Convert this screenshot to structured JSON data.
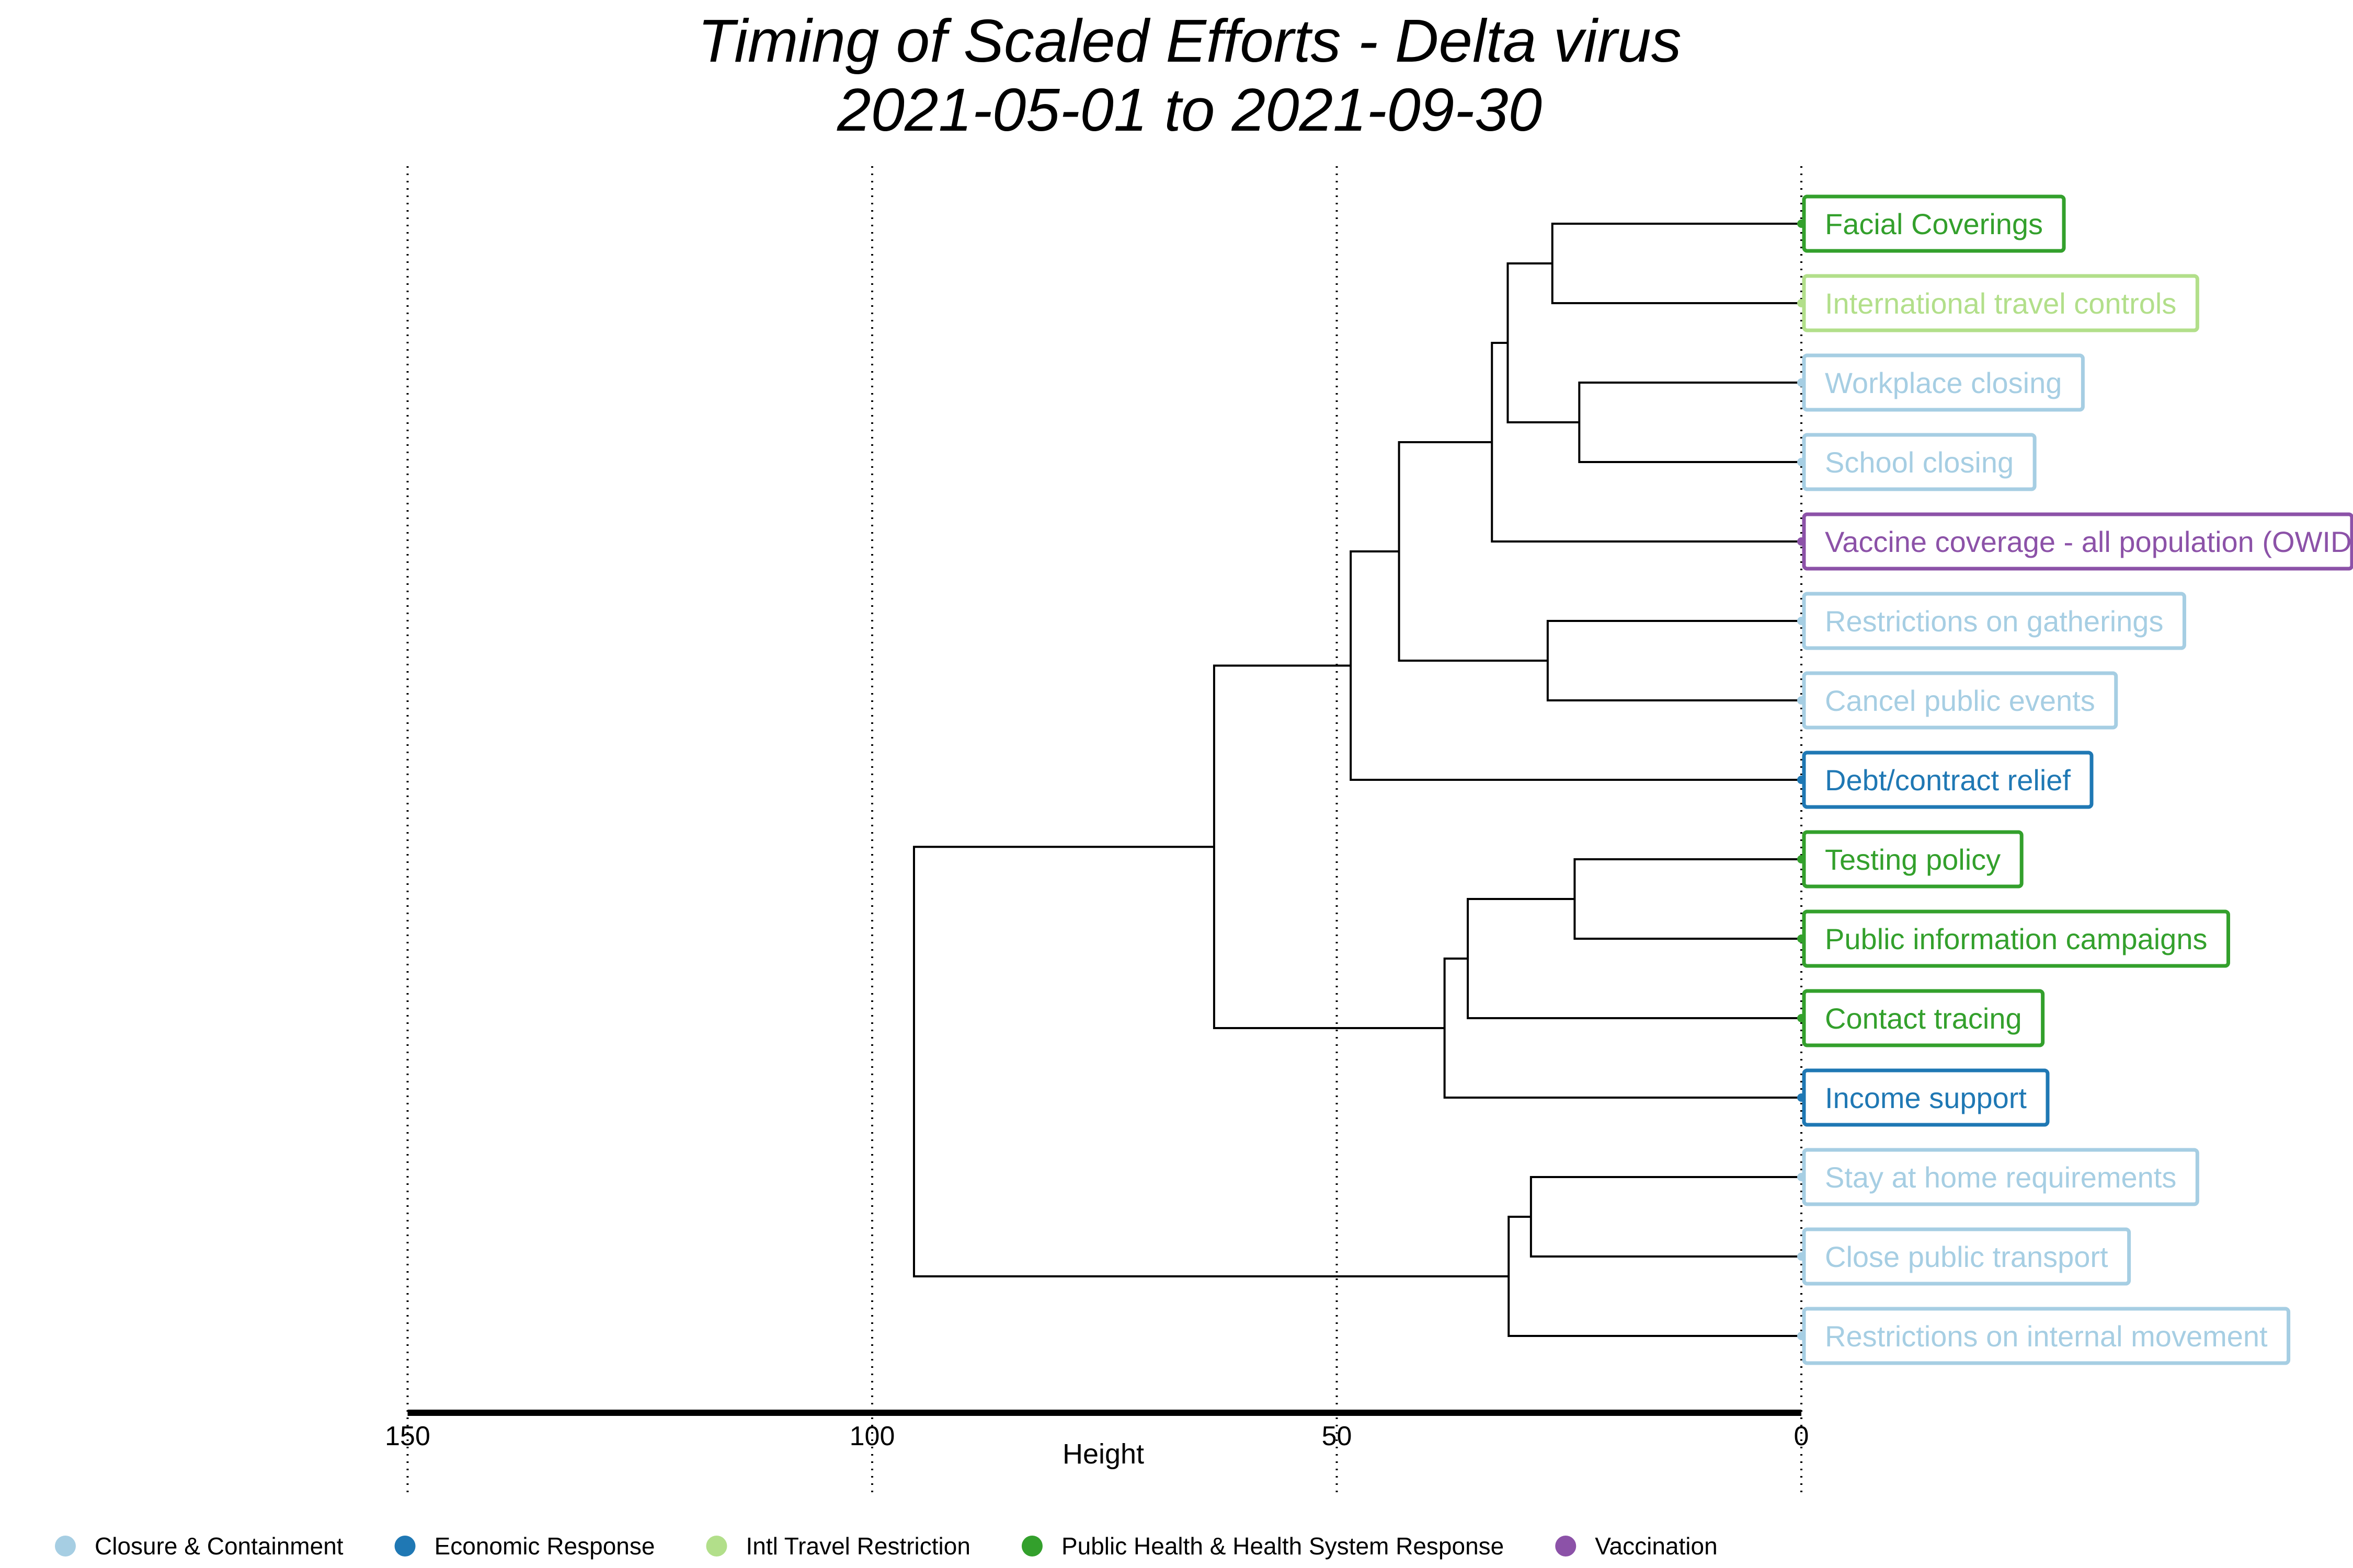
{
  "title": {
    "line1": "Timing of Scaled Efforts - Delta virus",
    "line2": "2021-05-01 to 2021-09-30"
  },
  "axis": {
    "label": "Height",
    "ticks": [
      "150",
      "100",
      "50",
      "0"
    ],
    "range": [
      150,
      0
    ],
    "gridlines": true
  },
  "colors": {
    "Closure & Containment": "#a6cee3",
    "Economic Response": "#1f78b4",
    "Intl Travel Restriction": "#b2df8a",
    "Public Health & Health System Response": "#33a02c",
    "Vaccination": "#8c52a8"
  },
  "legend": {
    "position": "bottom",
    "items": [
      {
        "label": "Closure & Containment",
        "color": "#a6cee3"
      },
      {
        "label": "Economic Response",
        "color": "#1f78b4"
      },
      {
        "label": "Intl Travel Restriction",
        "color": "#b2df8a"
      },
      {
        "label": "Public Health & Health System Response",
        "color": "#33a02c"
      },
      {
        "label": "Vaccination",
        "color": "#8c52a8"
      }
    ]
  },
  "chart_data": {
    "type": "dendrogram",
    "orientation": "horizontal",
    "leaves": [
      {
        "label": "Facial Coverings",
        "category": "Public Health & Health System Response"
      },
      {
        "label": "International travel controls",
        "category": "Intl Travel Restriction"
      },
      {
        "label": "Workplace closing",
        "category": "Closure & Containment"
      },
      {
        "label": "School closing",
        "category": "Closure & Containment"
      },
      {
        "label": "Vaccine coverage - all population (OWID)",
        "category": "Vaccination"
      },
      {
        "label": "Restrictions on gatherings",
        "category": "Closure & Containment"
      },
      {
        "label": "Cancel public events",
        "category": "Closure & Containment"
      },
      {
        "label": "Debt/contract relief",
        "category": "Economic Response"
      },
      {
        "label": "Testing policy",
        "category": "Public Health & Health System Response"
      },
      {
        "label": "Public information campaigns",
        "category": "Public Health & Health System Response"
      },
      {
        "label": "Contact tracing",
        "category": "Public Health & Health System Response"
      },
      {
        "label": "Income support",
        "category": "Economic Response"
      },
      {
        "label": "Stay at home requirements",
        "category": "Closure & Containment"
      },
      {
        "label": "Close public transport",
        "category": "Closure & Containment"
      },
      {
        "label": "Restrictions on internal movement",
        "category": "Closure & Containment"
      }
    ],
    "merges": [
      {
        "id": "m1",
        "children": [
          0,
          1
        ],
        "height": 26.8
      },
      {
        "id": "m2",
        "children": [
          2,
          3
        ],
        "height": 23.9
      },
      {
        "id": "m3",
        "children": [
          "m1",
          "m2"
        ],
        "height": 31.6
      },
      {
        "id": "m4",
        "children": [
          "m3",
          4
        ],
        "height": 33.3
      },
      {
        "id": "m5",
        "children": [
          5,
          6
        ],
        "height": 27.3
      },
      {
        "id": "m6",
        "children": [
          "m4",
          "m5"
        ],
        "height": 43.3
      },
      {
        "id": "m7",
        "children": [
          "m6",
          7
        ],
        "height": 48.5
      },
      {
        "id": "m8",
        "children": [
          8,
          9
        ],
        "height": 24.4
      },
      {
        "id": "m9",
        "children": [
          "m8",
          10
        ],
        "height": 35.9
      },
      {
        "id": "m10",
        "children": [
          "m9",
          11
        ],
        "height": 38.4
      },
      {
        "id": "m11",
        "children": [
          "m7",
          "m10"
        ],
        "height": 63.2
      },
      {
        "id": "m12",
        "children": [
          12,
          13
        ],
        "height": 29.1
      },
      {
        "id": "m13",
        "children": [
          "m12",
          14
        ],
        "height": 31.5
      },
      {
        "id": "m14",
        "children": [
          "m11",
          "m13"
        ],
        "height": 95.5
      }
    ]
  }
}
